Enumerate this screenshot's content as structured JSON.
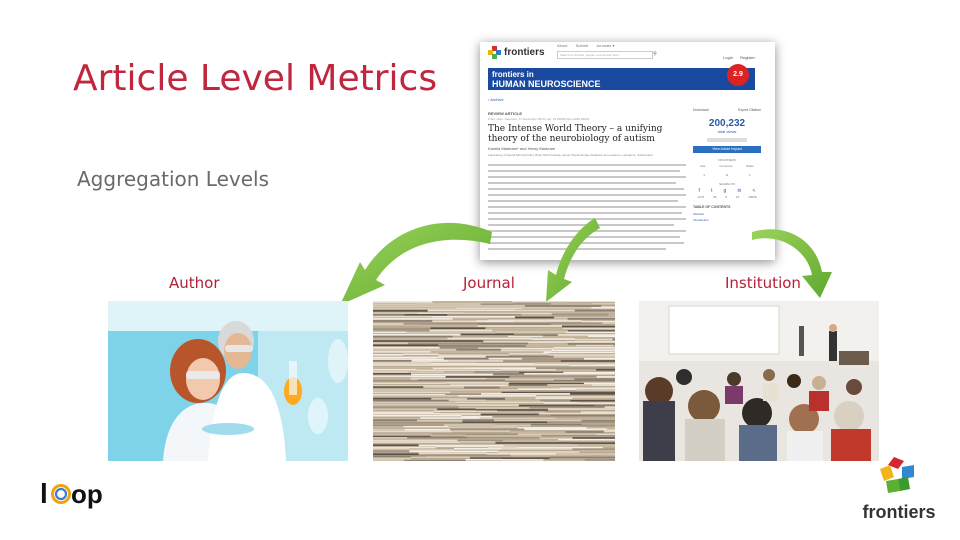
{
  "slide": {
    "title": "Article Level Metrics",
    "subtitle": "Aggregation Levels"
  },
  "levels": [
    {
      "label": "Author"
    },
    {
      "label": "Journal"
    },
    {
      "label": "Institution"
    }
  ],
  "article": {
    "site_logo": "frontiers",
    "nav": [
      "About",
      "Submit",
      "Journals ▾"
    ],
    "search_placeholder": "Search for articles, people, events and more",
    "auth": [
      "Login",
      "Register"
    ],
    "journal_line1": "frontiers in",
    "journal_line2": "HUMAN NEUROSCIENCE",
    "impact_factor": "2.9",
    "archive": "‹ Archive",
    "type": "REVIEW ARTICLE",
    "meta": "Front. Hum. Neurosci., 17 December 2010 | doi: 10.3389/fnhum.2010.00224",
    "title": "The Intense World Theory – a unifying theory of the neurobiology of autism",
    "authors": "Kamila Markram* and Henry Markram",
    "affiliation": "Laboratory of Neural Microcircuitry, Brain Mind Institute, Ecole Polytechnique Fédérale de Lausanne, Lausanne, Switzerland",
    "download": "Download",
    "export": "Export Citation",
    "views": "200,232",
    "views_label": "total views",
    "impact_button": "View Article Impact",
    "frontiers_label": "FRONTIERS",
    "stats_labels": [
      "Like",
      "Comment",
      "Share"
    ],
    "stats_values": [
      "4",
      "11",
      "1"
    ],
    "share_on": "SHARE ON",
    "share_values": [
      "1275",
      "66",
      "8",
      "15",
      "19598"
    ],
    "toc_title": "TABLE OF CONTENTS",
    "toc_items": [
      "Abstract",
      "Introduction"
    ]
  },
  "logos": {
    "loop": "loop",
    "frontiers": "frontiers"
  },
  "colors": {
    "title": "#c0263e",
    "label": "#b51f35",
    "arrow": "#7ec142",
    "journal_banner": "#1a4aa0"
  }
}
